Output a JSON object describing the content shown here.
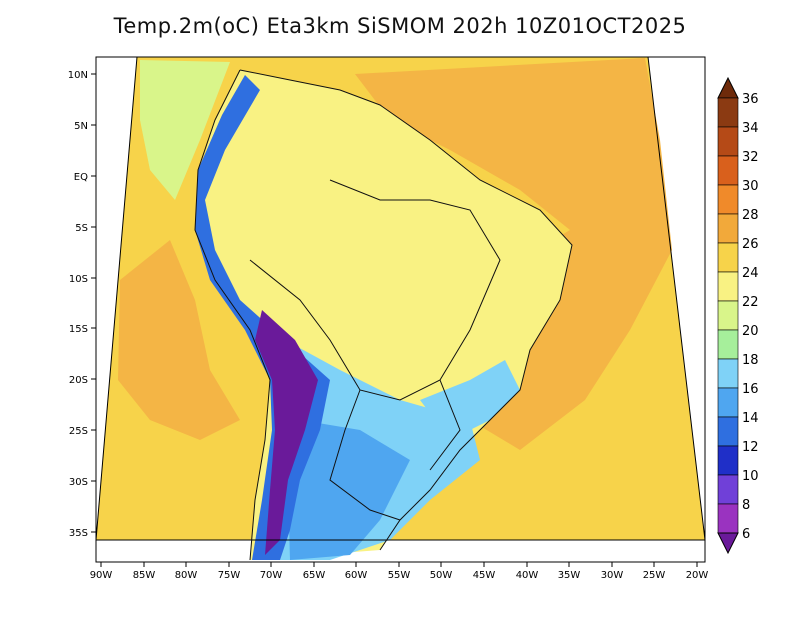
{
  "title": "Temp.2m(oC) Eta3km SiSMOM 202h 10Z01OCT2025",
  "map": {
    "lat_labels": [
      "10N",
      "5N",
      "EQ",
      "5S",
      "10S",
      "15S",
      "20S",
      "25S",
      "30S",
      "35S"
    ],
    "lon_labels": [
      "90W",
      "85W",
      "80W",
      "75W",
      "70W",
      "65W",
      "60W",
      "55W",
      "50W",
      "45W",
      "40W",
      "35W",
      "30W",
      "25W",
      "20W"
    ]
  },
  "colorbar": {
    "labels": [
      "36",
      "34",
      "32",
      "30",
      "28",
      "26",
      "24",
      "22",
      "20",
      "18",
      "16",
      "14",
      "12",
      "10",
      "8",
      "6"
    ],
    "colors": [
      "#6e2a0a",
      "#8b3a12",
      "#b54a17",
      "#d9601c",
      "#f08a2a",
      "#f2a93a",
      "#f7d34a",
      "#f9f283",
      "#d9f58a",
      "#a6ef9b",
      "#7fd2f7",
      "#4fa6f0",
      "#2f6fe0",
      "#1f2fc8",
      "#7040d8",
      "#9a33c0",
      "#6a1a9a"
    ],
    "units": "oC"
  },
  "palette": {
    "ocean_warm": "#f4b545",
    "ocean_mild": "#f7d34a",
    "land_warm": "#f2e86a",
    "cool": "#a6ef9b",
    "andes": "#6a1a9a"
  }
}
